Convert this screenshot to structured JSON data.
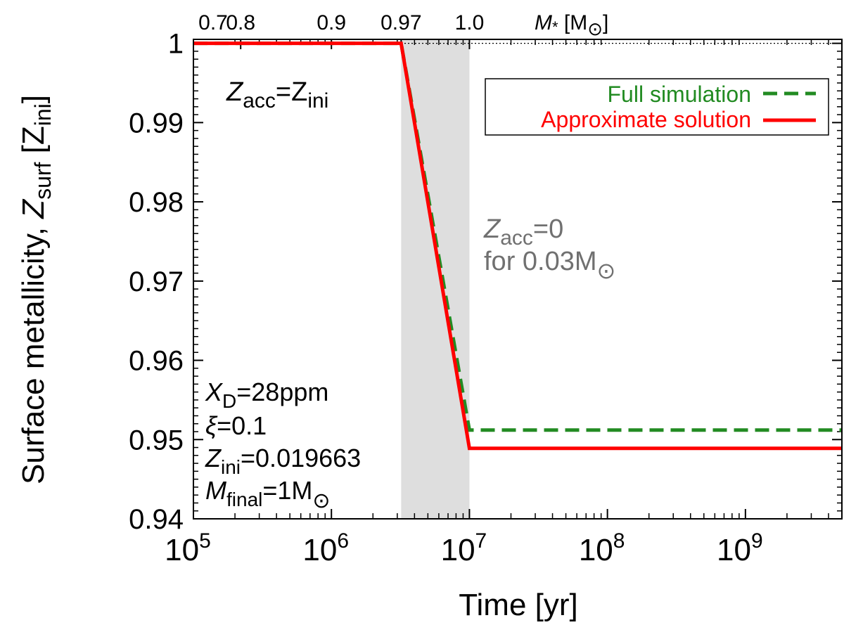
{
  "chart_data": {
    "type": "line",
    "xscale": "log",
    "xlim": [
      100000,
      5000000000
    ],
    "ylim": [
      0.94,
      1.0005
    ],
    "xlabel": "Time [yr]",
    "ylabel": {
      "main": "Surface metallicity, ",
      "sym": "Z",
      "sub": "surf",
      "unit_open": " [Z",
      "unit_sub": "ini",
      "unit_close": "]"
    },
    "x_ticks": [
      {
        "value": 100000,
        "base": "10",
        "exp": "5"
      },
      {
        "value": 1000000,
        "base": "10",
        "exp": "6"
      },
      {
        "value": 10000000,
        "base": "10",
        "exp": "7"
      },
      {
        "value": 100000000,
        "base": "10",
        "exp": "8"
      },
      {
        "value": 1000000000,
        "base": "10",
        "exp": "9"
      }
    ],
    "y_ticks": [
      {
        "value": 1.0,
        "label": "1"
      },
      {
        "value": 0.99,
        "label": "0.99"
      },
      {
        "value": 0.98,
        "label": "0.98"
      },
      {
        "value": 0.97,
        "label": "0.97"
      },
      {
        "value": 0.96,
        "label": "0.96"
      },
      {
        "value": 0.95,
        "label": "0.95"
      },
      {
        "value": 0.94,
        "label": "0.94"
      }
    ],
    "top_axis": {
      "label_sym": "M",
      "label_sub": "*",
      "label_unit": " [M",
      "label_sun": "⊙",
      "label_close": "]",
      "ticks": [
        {
          "time": 100000,
          "label": "0.7"
        },
        {
          "time": 220000,
          "label": "0.8"
        },
        {
          "time": 1000000,
          "label": "0.9"
        },
        {
          "time": 3200000,
          "label": "0.97"
        },
        {
          "time": 10000000,
          "label": "1.0"
        }
      ]
    },
    "shaded_region": {
      "x": [
        3200000,
        10000000
      ],
      "color": "#dedede"
    },
    "reference_line": {
      "y": 1.0,
      "style": "dotted"
    },
    "series": [
      {
        "name": "Full simulation",
        "color": "#228b22",
        "style": "dashed",
        "x": [
          100000,
          3200000,
          10000000,
          5000000000
        ],
        "y": [
          1.0,
          1.0,
          0.9512,
          0.9512
        ]
      },
      {
        "name": "Approximate solution",
        "color": "#ff0000",
        "style": "solid",
        "x": [
          100000,
          3200000,
          10000000,
          5000000000
        ],
        "y": [
          1.0,
          1.0,
          0.9489,
          0.9489
        ]
      }
    ],
    "annotations": {
      "zacc_ini": {
        "sym": "Z",
        "sub": "acc",
        "eq": "=Z",
        "sub2": "ini"
      },
      "zacc_zero": {
        "sym": "Z",
        "sub": "acc",
        "eq": "=0",
        "line2": "for 0.03M",
        "sun": "⊙"
      },
      "params": [
        {
          "sym": "X",
          "sub": "D",
          "rest": "=28ppm"
        },
        {
          "sym": "ξ",
          "sub": "",
          "rest": "=0.1"
        },
        {
          "sym": "Z",
          "sub": "ini",
          "rest": "=0.019663"
        },
        {
          "sym": "M",
          "sub": "final",
          "rest": "=1M",
          "sun": "⊙"
        }
      ]
    },
    "legend_position": "top-right"
  }
}
